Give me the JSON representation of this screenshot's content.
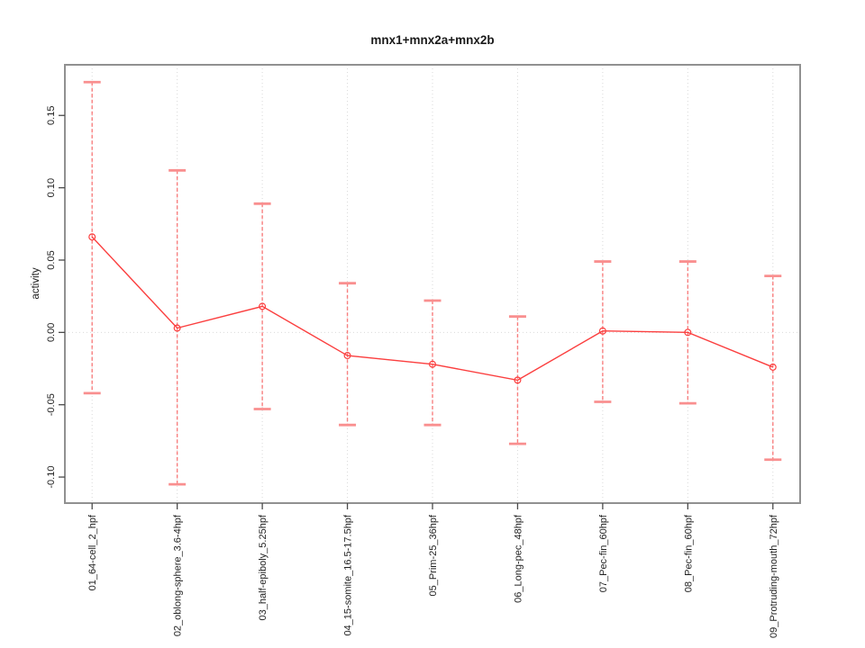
{
  "chart_data": {
    "type": "line",
    "title": "mnx1+mnx2a+mnx2b",
    "xlabel": "",
    "ylabel": "activity",
    "legend": "none",
    "grid": "vertical dotted line at each category; horizontal dotted line at y=0",
    "categories": [
      "01_64-cell_2_hpf",
      "02_oblong-sphere_3.6-4hpf",
      "03_half-epiboly_5.25hpf",
      "04_15-somite_16.5-17.5hpf",
      "05_Prim-25_36hpf",
      "06_Long-pec_48hpf",
      "07_Pec-fin_60hpf",
      "08_Pec-fin_60hpf",
      "09_Protruding-mouth_72hpf"
    ],
    "series": [
      {
        "name": "activity",
        "values": [
          0.066,
          0.003,
          0.018,
          -0.016,
          -0.022,
          -0.033,
          0.001,
          0.0,
          -0.024
        ],
        "upper": [
          0.173,
          0.112,
          0.089,
          0.034,
          0.022,
          0.011,
          0.049,
          0.049,
          0.039
        ],
        "lower": [
          -0.042,
          -0.105,
          -0.053,
          -0.064,
          -0.064,
          -0.077,
          -0.048,
          -0.049,
          -0.088
        ]
      }
    ],
    "ylim": [
      -0.118,
      0.185
    ],
    "yticks": [
      -0.1,
      -0.05,
      0.0,
      0.05,
      0.1,
      0.15
    ],
    "ytick_labels": [
      "-0.10",
      "-0.05",
      "0.00",
      "0.05",
      "0.10",
      "0.15"
    ],
    "colors": {
      "line": "#fb3f3f",
      "marker": "#fb3f3f",
      "errorbar_cap": "#f98f8f",
      "whisker": "#f96a6a",
      "gridline": "#d9d9d9",
      "box": "#909090",
      "tick": "#4a4a4a",
      "text": "#1f1f1f",
      "background": "#ffffff"
    }
  }
}
